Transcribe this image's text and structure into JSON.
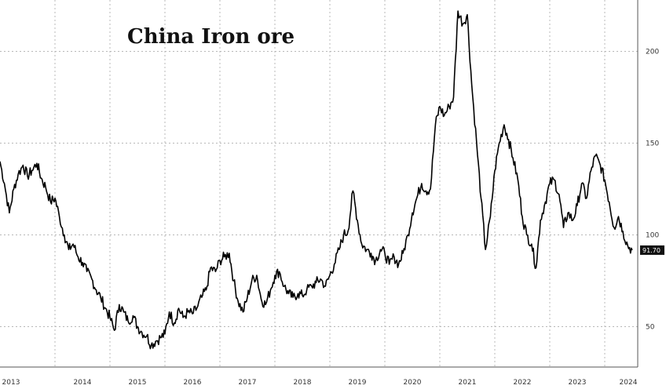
{
  "chart_data": {
    "type": "line",
    "title": "China Iron ore",
    "xlabel": "",
    "ylabel": "",
    "x_tick_labels": [
      "2013",
      "2014",
      "2015",
      "2016",
      "2017",
      "2018",
      "2019",
      "2020",
      "2021",
      "2022",
      "2023",
      "2024"
    ],
    "y_ticks": [
      50,
      100,
      150,
      200
    ],
    "ylim": [
      28,
      228
    ],
    "xlim": [
      2013.0,
      2024.6
    ],
    "grid": true,
    "last_value_label": "91.70",
    "series": [
      {
        "name": "",
        "color": "#000000",
        "points": [
          [
            2013.0,
            140
          ],
          [
            2013.08,
            128
          ],
          [
            2013.17,
            112
          ],
          [
            2013.25,
            125
          ],
          [
            2013.33,
            133
          ],
          [
            2013.42,
            138
          ],
          [
            2013.5,
            132
          ],
          [
            2013.58,
            135
          ],
          [
            2013.67,
            139
          ],
          [
            2013.75,
            131
          ],
          [
            2013.83,
            126
          ],
          [
            2013.92,
            118
          ],
          [
            2014.0,
            120
          ],
          [
            2014.08,
            110
          ],
          [
            2014.17,
            100
          ],
          [
            2014.25,
            92
          ],
          [
            2014.33,
            95
          ],
          [
            2014.42,
            88
          ],
          [
            2014.5,
            85
          ],
          [
            2014.58,
            80
          ],
          [
            2014.67,
            76
          ],
          [
            2014.75,
            70
          ],
          [
            2014.83,
            66
          ],
          [
            2014.92,
            60
          ],
          [
            2015.0,
            55
          ],
          [
            2015.08,
            48
          ],
          [
            2015.17,
            62
          ],
          [
            2015.25,
            58
          ],
          [
            2015.33,
            53
          ],
          [
            2015.42,
            56
          ],
          [
            2015.5,
            50
          ],
          [
            2015.58,
            47
          ],
          [
            2015.67,
            45
          ],
          [
            2015.75,
            40
          ],
          [
            2015.83,
            42
          ],
          [
            2015.92,
            44
          ],
          [
            2016.0,
            46
          ],
          [
            2016.08,
            58
          ],
          [
            2016.17,
            52
          ],
          [
            2016.25,
            60
          ],
          [
            2016.33,
            55
          ],
          [
            2016.42,
            58
          ],
          [
            2016.5,
            57
          ],
          [
            2016.58,
            60
          ],
          [
            2016.67,
            66
          ],
          [
            2016.75,
            70
          ],
          [
            2016.83,
            82
          ],
          [
            2016.92,
            80
          ],
          [
            2017.0,
            86
          ],
          [
            2017.08,
            88
          ],
          [
            2017.17,
            90
          ],
          [
            2017.25,
            75
          ],
          [
            2017.33,
            64
          ],
          [
            2017.42,
            58
          ],
          [
            2017.5,
            66
          ],
          [
            2017.58,
            75
          ],
          [
            2017.67,
            78
          ],
          [
            2017.75,
            65
          ],
          [
            2017.83,
            62
          ],
          [
            2017.92,
            70
          ],
          [
            2018.0,
            78
          ],
          [
            2018.08,
            80
          ],
          [
            2018.17,
            72
          ],
          [
            2018.25,
            68
          ],
          [
            2018.33,
            66
          ],
          [
            2018.42,
            68
          ],
          [
            2018.5,
            67
          ],
          [
            2018.58,
            70
          ],
          [
            2018.67,
            72
          ],
          [
            2018.75,
            74
          ],
          [
            2018.83,
            76
          ],
          [
            2018.92,
            72
          ],
          [
            2019.0,
            78
          ],
          [
            2019.08,
            84
          ],
          [
            2019.17,
            92
          ],
          [
            2019.25,
            100
          ],
          [
            2019.33,
            102
          ],
          [
            2019.42,
            124
          ],
          [
            2019.5,
            108
          ],
          [
            2019.58,
            95
          ],
          [
            2019.67,
            92
          ],
          [
            2019.75,
            90
          ],
          [
            2019.83,
            86
          ],
          [
            2019.92,
            92
          ],
          [
            2020.0,
            90
          ],
          [
            2020.08,
            84
          ],
          [
            2020.17,
            88
          ],
          [
            2020.25,
            84
          ],
          [
            2020.33,
            90
          ],
          [
            2020.42,
            100
          ],
          [
            2020.5,
            112
          ],
          [
            2020.58,
            120
          ],
          [
            2020.67,
            128
          ],
          [
            2020.75,
            124
          ],
          [
            2020.83,
            125
          ],
          [
            2020.92,
            160
          ],
          [
            2021.0,
            170
          ],
          [
            2021.08,
            165
          ],
          [
            2021.17,
            170
          ],
          [
            2021.25,
            175
          ],
          [
            2021.33,
            222
          ],
          [
            2021.42,
            215
          ],
          [
            2021.5,
            220
          ],
          [
            2021.58,
            182
          ],
          [
            2021.67,
            150
          ],
          [
            2021.75,
            120
          ],
          [
            2021.83,
            92
          ],
          [
            2021.92,
            110
          ],
          [
            2022.0,
            135
          ],
          [
            2022.08,
            150
          ],
          [
            2022.17,
            160
          ],
          [
            2022.25,
            152
          ],
          [
            2022.33,
            142
          ],
          [
            2022.42,
            130
          ],
          [
            2022.5,
            110
          ],
          [
            2022.58,
            100
          ],
          [
            2022.67,
            95
          ],
          [
            2022.75,
            82
          ],
          [
            2022.83,
            108
          ],
          [
            2022.92,
            118
          ],
          [
            2023.0,
            128
          ],
          [
            2023.08,
            130
          ],
          [
            2023.17,
            122
          ],
          [
            2023.25,
            104
          ],
          [
            2023.33,
            112
          ],
          [
            2023.42,
            108
          ],
          [
            2023.5,
            116
          ],
          [
            2023.58,
            128
          ],
          [
            2023.67,
            120
          ],
          [
            2023.75,
            135
          ],
          [
            2023.83,
            143
          ],
          [
            2023.92,
            138
          ],
          [
            2024.0,
            130
          ],
          [
            2024.08,
            118
          ],
          [
            2024.17,
            104
          ],
          [
            2024.25,
            110
          ],
          [
            2024.33,
            102
          ],
          [
            2024.42,
            94
          ],
          [
            2024.5,
            91.7
          ]
        ]
      }
    ]
  }
}
